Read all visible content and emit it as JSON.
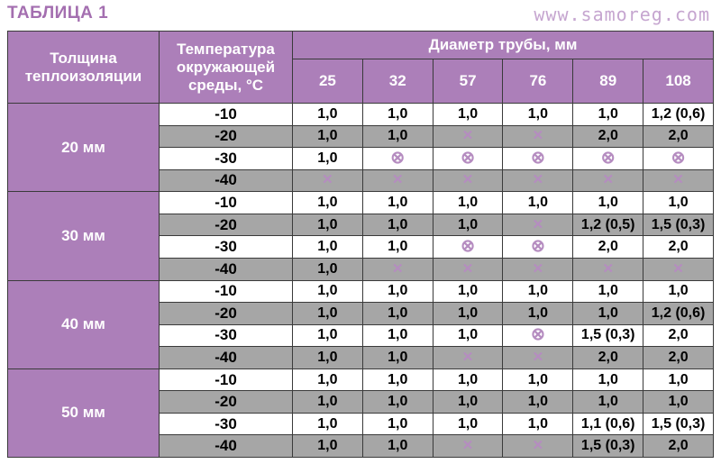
{
  "title": "ТАБЛИЦА 1",
  "site": "www.samoreg.com",
  "header": {
    "thickness": "Толщина теплоизоляции",
    "temperature": "Температура окружающей среды, °С",
    "diameter": "Диаметр трубы, мм",
    "diameters": [
      "25",
      "32",
      "57",
      "76",
      "89",
      "108"
    ]
  },
  "symbols": {
    "cross": "✕",
    "circled_cross": "⊗"
  },
  "groups": [
    {
      "thickness": "20 мм",
      "rows": [
        {
          "temp": "-10",
          "values": [
            "1,0",
            "1,0",
            "1,0",
            "1,0",
            "1,0",
            "1,2 (0,6)"
          ]
        },
        {
          "temp": "-20",
          "values": [
            "1,0",
            "1,0",
            "x",
            "x",
            "2,0",
            "2,0"
          ]
        },
        {
          "temp": "-30",
          "values": [
            "1,0",
            "cx",
            "cx",
            "cx",
            "cx",
            "cx"
          ]
        },
        {
          "temp": "-40",
          "values": [
            "x",
            "x",
            "x",
            "x",
            "x",
            "x"
          ]
        }
      ]
    },
    {
      "thickness": "30 мм",
      "rows": [
        {
          "temp": "-10",
          "values": [
            "1,0",
            "1,0",
            "1,0",
            "1,0",
            "1,0",
            "1,0"
          ]
        },
        {
          "temp": "-20",
          "values": [
            "1,0",
            "1,0",
            "1,0",
            "x",
            "1,2 (0,5)",
            "1,5 (0,3)"
          ]
        },
        {
          "temp": "-30",
          "values": [
            "1,0",
            "1,0",
            "cx",
            "cx",
            "2,0",
            "2,0"
          ]
        },
        {
          "temp": "-40",
          "values": [
            "1,0",
            "x",
            "x",
            "x",
            "x",
            "x"
          ]
        }
      ]
    },
    {
      "thickness": "40 мм",
      "rows": [
        {
          "temp": "-10",
          "values": [
            "1,0",
            "1,0",
            "1,0",
            "1,0",
            "1,0",
            "1,0"
          ]
        },
        {
          "temp": "-20",
          "values": [
            "1,0",
            "1,0",
            "1,0",
            "1,0",
            "1,0",
            "1,2 (0,6)"
          ]
        },
        {
          "temp": "-30",
          "values": [
            "1,0",
            "1,0",
            "1,0",
            "cx",
            "1,5 (0,3)",
            "2,0"
          ]
        },
        {
          "temp": "-40",
          "values": [
            "1,0",
            "1,0",
            "x",
            "x",
            "2,0",
            "2,0"
          ]
        }
      ]
    },
    {
      "thickness": "50 мм",
      "rows": [
        {
          "temp": "-10",
          "values": [
            "1,0",
            "1,0",
            "1,0",
            "1,0",
            "1,0",
            "1,0"
          ]
        },
        {
          "temp": "-20",
          "values": [
            "1,0",
            "1,0",
            "1,0",
            "1,0",
            "1,0",
            "1,0"
          ]
        },
        {
          "temp": "-30",
          "values": [
            "1,0",
            "1,0",
            "1,0",
            "1,0",
            "1,1 (0,6)",
            "1,5 (0,3)"
          ]
        },
        {
          "temp": "-40",
          "values": [
            "1,0",
            "1,0",
            "x",
            "x",
            "1,5 (0,3)",
            "2,0"
          ]
        }
      ]
    }
  ]
}
